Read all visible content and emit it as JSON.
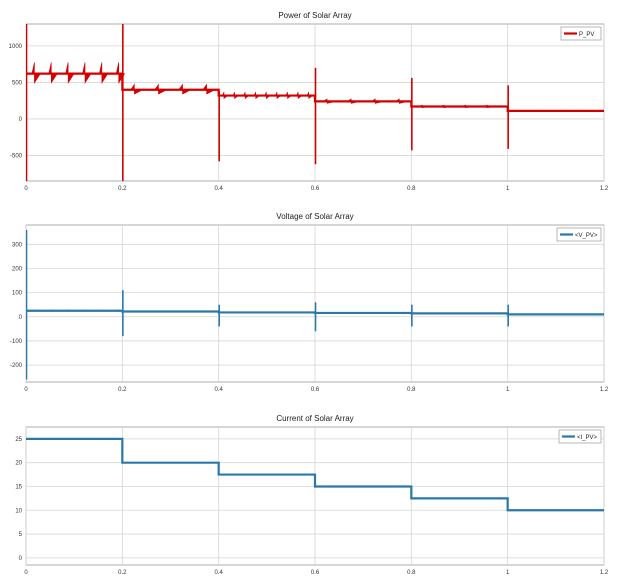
{
  "chart_data": [
    {
      "type": "line",
      "title": "Power of Solar Array",
      "xlabel": "",
      "ylabel": "",
      "xlim": [
        0,
        1.2
      ],
      "ylim": [
        -850,
        1300
      ],
      "xticks": [
        0,
        0.2,
        0.4,
        0.6,
        0.8,
        1,
        1.2
      ],
      "xtick_labels": [
        "0",
        "0.2",
        "0.4",
        "0.6",
        "0.8",
        "1",
        "1.2"
      ],
      "yticks": [
        -500,
        0,
        500,
        1000
      ],
      "ytick_labels": [
        "-500",
        "0",
        "500",
        "1000"
      ],
      "grid": true,
      "legend_position": "top-right",
      "color": "#d40000",
      "series": [
        {
          "name": "P_PV",
          "x": [
            0,
            0.2,
            0.2,
            0.4,
            0.4,
            0.6,
            0.6,
            0.8,
            0.8,
            1.0,
            1.0,
            1.2
          ],
          "y": [
            620,
            620,
            400,
            400,
            320,
            320,
            240,
            240,
            170,
            170,
            110,
            110
          ],
          "ripple_periods": [
            0.035,
            0.05,
            0.022,
            0.05,
            0.045,
            0.045
          ],
          "ripple_amplitudes": [
            280,
            130,
            90,
            60,
            35,
            20
          ],
          "spikes": [
            {
              "x": 0,
              "max": 1300,
              "min": -850
            },
            {
              "x": 0.2,
              "max": 1300,
              "min": -850
            },
            {
              "x": 0.4,
              "max": 380,
              "min": -580
            },
            {
              "x": 0.6,
              "max": 700,
              "min": -620
            },
            {
              "x": 0.8,
              "max": 560,
              "min": -430
            },
            {
              "x": 1.0,
              "max": 460,
              "min": -410
            }
          ]
        }
      ]
    },
    {
      "type": "line",
      "title": "Voltage of Solar Array",
      "xlabel": "",
      "ylabel": "",
      "xlim": [
        0,
        1.2
      ],
      "ylim": [
        -270,
        380
      ],
      "xticks": [
        0,
        0.2,
        0.4,
        0.6,
        0.8,
        1,
        1.2
      ],
      "xtick_labels": [
        "0",
        "0.2",
        "0.4",
        "0.6",
        "0.8",
        "1",
        "1.2"
      ],
      "yticks": [
        -200,
        -100,
        0,
        100,
        200,
        300
      ],
      "ytick_labels": [
        "-200",
        "-100",
        "0",
        "100",
        "200",
        "300"
      ],
      "grid": true,
      "legend_position": "top-right",
      "color": "#2a78a8",
      "series": [
        {
          "name": "<V_PV>",
          "x": [
            0,
            0.2,
            0.2,
            0.4,
            0.4,
            0.6,
            0.6,
            0.8,
            0.8,
            1.0,
            1.0,
            1.2
          ],
          "y": [
            25,
            25,
            22,
            22,
            18,
            18,
            16,
            16,
            14,
            14,
            10,
            10
          ],
          "ripple_periods": [
            0.035,
            0.05,
            0.04,
            0.05,
            0.05,
            0.05
          ],
          "ripple_amplitudes": [
            6,
            4,
            3,
            3,
            2,
            2
          ],
          "spikes": [
            {
              "x": 0,
              "max": 360,
              "min": -260
            },
            {
              "x": 0.2,
              "max": 110,
              "min": -80
            },
            {
              "x": 0.4,
              "max": 50,
              "min": -40
            },
            {
              "x": 0.6,
              "max": 60,
              "min": -60
            },
            {
              "x": 0.8,
              "max": 50,
              "min": -40
            },
            {
              "x": 1.0,
              "max": 50,
              "min": -40
            }
          ]
        }
      ]
    },
    {
      "type": "line",
      "title": "Current of Solar Array",
      "xlabel": "",
      "ylabel": "",
      "xlim": [
        0,
        1.2
      ],
      "ylim": [
        -1.5,
        27.5
      ],
      "xticks": [
        0,
        0.2,
        0.4,
        0.6,
        0.8,
        1,
        1.2
      ],
      "xtick_labels": [
        "0",
        "0.2",
        "0.4",
        "0.6",
        "0.8",
        "1",
        "1.2"
      ],
      "yticks": [
        0,
        5,
        10,
        15,
        20,
        25
      ],
      "ytick_labels": [
        "0",
        "5",
        "10",
        "15",
        "20",
        "25"
      ],
      "grid": true,
      "legend_position": "top-right",
      "color": "#2a78a8",
      "series": [
        {
          "name": "<I_PV>",
          "x": [
            0,
            0.2,
            0.2,
            0.4,
            0.4,
            0.6,
            0.6,
            0.8,
            0.8,
            1.0,
            1.0,
            1.2
          ],
          "y": [
            25,
            25,
            20,
            20,
            17.5,
            17.5,
            15,
            15,
            12.5,
            12.5,
            10,
            10
          ]
        }
      ]
    }
  ]
}
